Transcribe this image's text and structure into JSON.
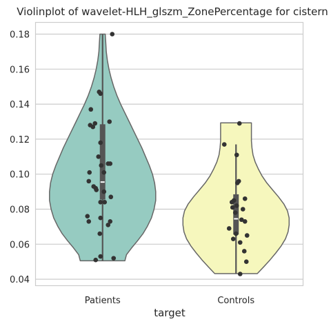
{
  "chart_data": {
    "type": "violin",
    "title": "Violinplot of wavelet-HLH_glszm_ZonePercentage for cistern",
    "xlabel": "target",
    "ylabel": "",
    "categories": [
      "Patients",
      "Controls"
    ],
    "ylim": [
      0.0365,
      0.1865
    ],
    "yticks": [
      0.04,
      0.06,
      0.08,
      0.1,
      0.12,
      0.14,
      0.16,
      0.18
    ],
    "ytick_labels": [
      "0.04",
      "0.06",
      "0.08",
      "0.10",
      "0.12",
      "0.14",
      "0.16",
      "0.18"
    ],
    "grid": true,
    "colors": {
      "Patients": "#96cbc1",
      "Controls": "#f6f7bd",
      "outline": "#666666",
      "points": "#333333",
      "grid": "#cccccc",
      "frame": "#cccccc"
    },
    "violins": [
      {
        "name": "Patients",
        "min": 0.0505,
        "max": 0.18,
        "q1": 0.0855,
        "median": 0.0955,
        "q3": 0.1285,
        "whisker_low": 0.0505,
        "whisker_high": 0.18,
        "density": [
          [
            0.0505,
            0.42
          ],
          [
            0.054,
            0.45
          ],
          [
            0.058,
            0.55
          ],
          [
            0.062,
            0.66
          ],
          [
            0.066,
            0.76
          ],
          [
            0.07,
            0.84
          ],
          [
            0.075,
            0.92
          ],
          [
            0.08,
            0.97
          ],
          [
            0.085,
            1.0
          ],
          [
            0.09,
            1.0
          ],
          [
            0.095,
            0.98
          ],
          [
            0.1,
            0.94
          ],
          [
            0.105,
            0.88
          ],
          [
            0.11,
            0.81
          ],
          [
            0.115,
            0.74
          ],
          [
            0.12,
            0.66
          ],
          [
            0.125,
            0.58
          ],
          [
            0.13,
            0.5
          ],
          [
            0.135,
            0.42
          ],
          [
            0.14,
            0.34
          ],
          [
            0.145,
            0.27
          ],
          [
            0.15,
            0.21
          ],
          [
            0.155,
            0.16
          ],
          [
            0.16,
            0.12
          ],
          [
            0.165,
            0.09
          ],
          [
            0.17,
            0.07
          ],
          [
            0.175,
            0.06
          ],
          [
            0.18,
            0.05
          ]
        ],
        "points": [
          0.18,
          0.147,
          0.146,
          0.137,
          0.13,
          0.129,
          0.128,
          0.127,
          0.118,
          0.11,
          0.106,
          0.106,
          0.105,
          0.101,
          0.101,
          0.096,
          0.093,
          0.092,
          0.091,
          0.09,
          0.087,
          0.084,
          0.084,
          0.076,
          0.075,
          0.073,
          0.073,
          0.071,
          0.066,
          0.053,
          0.052,
          0.051
        ]
      },
      {
        "name": "Controls",
        "min": 0.0432,
        "max": 0.1293,
        "q1": 0.0655,
        "median": 0.0745,
        "q3": 0.0885,
        "whisker_low": 0.0432,
        "whisker_high": 0.117,
        "density": [
          [
            0.0432,
            0.4
          ],
          [
            0.047,
            0.52
          ],
          [
            0.051,
            0.64
          ],
          [
            0.055,
            0.75
          ],
          [
            0.059,
            0.85
          ],
          [
            0.063,
            0.93
          ],
          [
            0.067,
            0.98
          ],
          [
            0.071,
            1.0
          ],
          [
            0.075,
            1.0
          ],
          [
            0.079,
            0.97
          ],
          [
            0.083,
            0.9
          ],
          [
            0.087,
            0.8
          ],
          [
            0.091,
            0.69
          ],
          [
            0.095,
            0.58
          ],
          [
            0.099,
            0.49
          ],
          [
            0.103,
            0.42
          ],
          [
            0.107,
            0.36
          ],
          [
            0.111,
            0.32
          ],
          [
            0.115,
            0.3
          ],
          [
            0.119,
            0.29
          ],
          [
            0.123,
            0.29
          ],
          [
            0.1293,
            0.29
          ]
        ],
        "points": [
          0.129,
          0.117,
          0.111,
          0.096,
          0.095,
          0.086,
          0.085,
          0.084,
          0.082,
          0.081,
          0.08,
          0.078,
          0.074,
          0.073,
          0.069,
          0.066,
          0.065,
          0.063,
          0.061,
          0.056,
          0.05,
          0.043
        ]
      }
    ],
    "jitter": {
      "Patients": [
        14,
        -5,
        -3,
        -17,
        10,
        -11,
        -18,
        -14,
        -3,
        -6,
        8,
        11,
        -2,
        2,
        -19,
        -20,
        -13,
        -10,
        -9,
        2,
        12,
        -3,
        3,
        -22,
        -3,
        11,
        -20,
        8,
        -4,
        -3,
        16,
        -10
      ],
      "Controls": [
        5,
        -17,
        1,
        4,
        2,
        13,
        -3,
        -6,
        1,
        -5,
        10,
        -1,
        8,
        13,
        -10,
        0,
        16,
        -4,
        6,
        12,
        15,
        6
      ]
    }
  }
}
